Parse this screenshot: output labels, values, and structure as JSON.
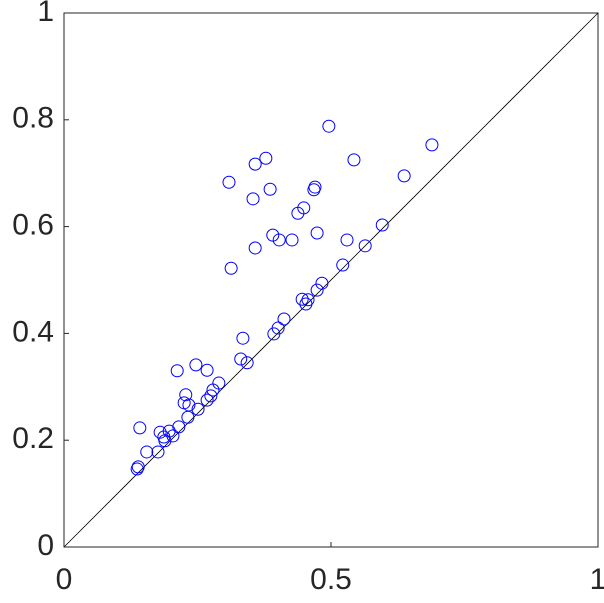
{
  "chart_data": {
    "type": "scatter",
    "x": [
      0.496,
      0.689,
      0.378,
      0.358,
      0.543,
      0.637,
      0.309,
      0.47,
      0.468,
      0.386,
      0.354,
      0.449,
      0.438,
      0.474,
      0.391,
      0.403,
      0.427,
      0.53,
      0.596,
      0.564,
      0.358,
      0.522,
      0.313,
      0.483,
      0.474,
      0.457,
      0.446,
      0.453,
      0.412,
      0.401,
      0.393,
      0.335,
      0.331,
      0.343,
      0.247,
      0.212,
      0.268,
      0.29,
      0.279,
      0.275,
      0.268,
      0.228,
      0.225,
      0.234,
      0.251,
      0.232,
      0.215,
      0.142,
      0.197,
      0.18,
      0.187,
      0.204,
      0.189,
      0.155,
      0.176,
      0.139,
      0.137
    ],
    "values": [
      0.788,
      0.753,
      0.728,
      0.717,
      0.725,
      0.695,
      0.683,
      0.674,
      0.669,
      0.67,
      0.652,
      0.635,
      0.625,
      0.588,
      0.584,
      0.575,
      0.575,
      0.575,
      0.603,
      0.564,
      0.56,
      0.528,
      0.522,
      0.494,
      0.481,
      0.463,
      0.464,
      0.455,
      0.427,
      0.41,
      0.399,
      0.391,
      0.352,
      0.345,
      0.341,
      0.33,
      0.331,
      0.307,
      0.294,
      0.283,
      0.275,
      0.285,
      0.27,
      0.266,
      0.258,
      0.243,
      0.225,
      0.223,
      0.217,
      0.215,
      0.206,
      0.208,
      0.199,
      0.178,
      0.178,
      0.15,
      0.146
    ],
    "color": "#0000ff",
    "xlim": [
      0,
      1
    ],
    "xticks": [
      0,
      0.5,
      1
    ],
    "ylim": [
      0,
      1
    ],
    "yticks": [
      0,
      0.2,
      0.4,
      0.6,
      0.8,
      1
    ],
    "grid": false
  }
}
